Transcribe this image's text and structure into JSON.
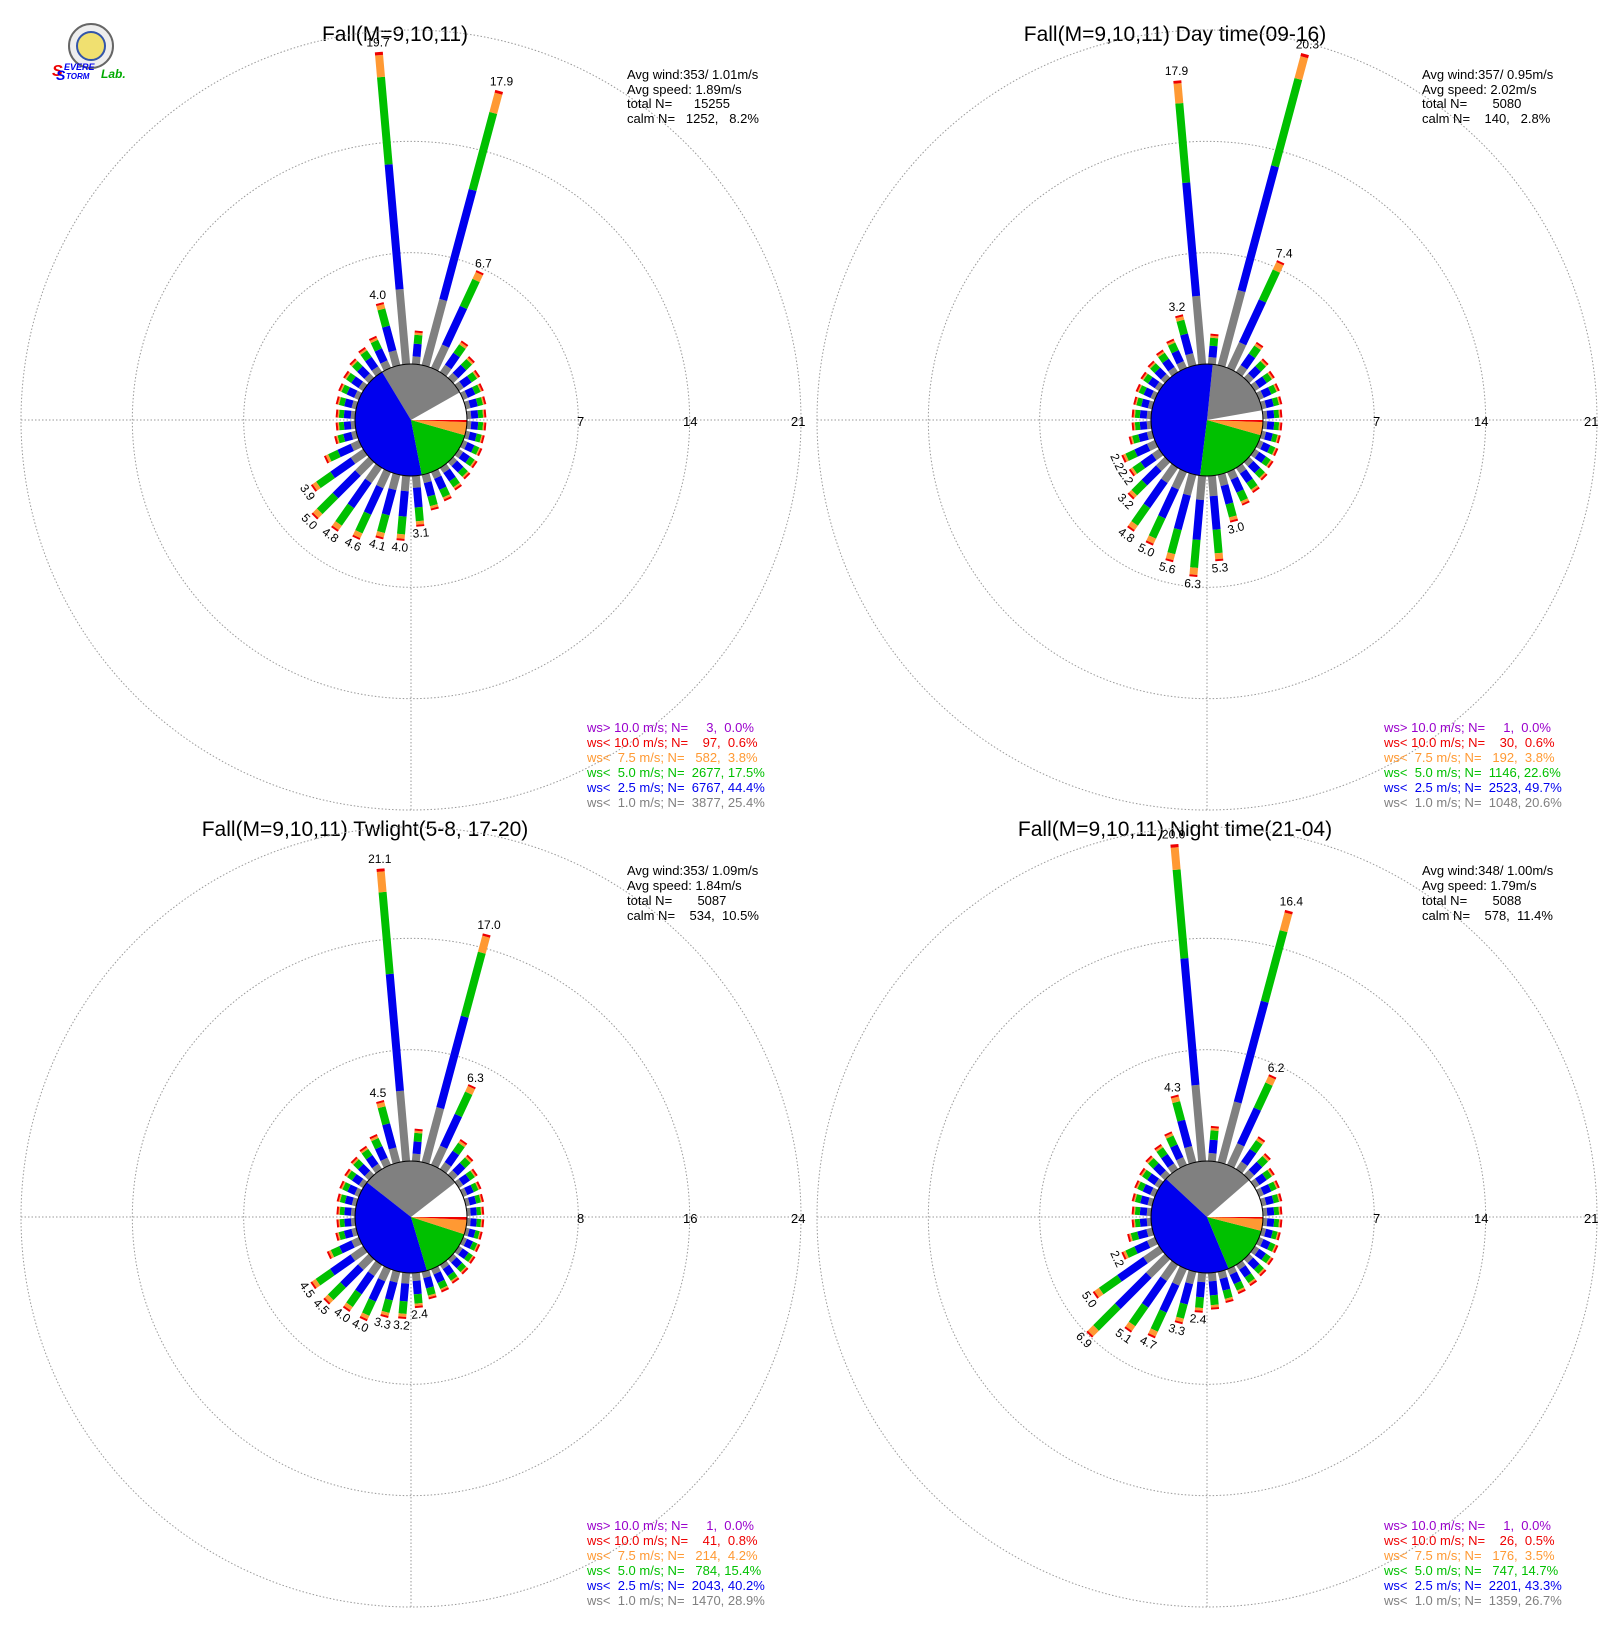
{
  "colors": {
    "gray": "#808080",
    "blue": "#0000ee",
    "green": "#00c000",
    "orange": "#ff9933",
    "red": "#ee0000",
    "purple": "#9900cc",
    "grid": "#999999"
  },
  "logo": {
    "line1_big": "S",
    "line1": "EVERE",
    "line2_big": "S",
    "line2": "TORM",
    "suffix": "Lab."
  },
  "chart_data": [
    {
      "type": "windrose",
      "title": "Fall(M=9,10,11)",
      "ring_labels": [
        "7",
        "14",
        "21"
      ],
      "rmax": 21,
      "stats": {
        "avg_wind": "Avg wind:353/ 1.01m/s",
        "avg_speed": "Avg speed: 1.89m/s",
        "total": "total N=      15255",
        "calm": "calm N=   1252,   8.2%"
      },
      "legend": [
        {
          "text": "ws> 10.0 m/s; N=     3,  0.0%",
          "color": "#9900cc"
        },
        {
          "text": "ws< 10.0 m/s; N=    97,  0.6%",
          "color": "#ee0000"
        },
        {
          "text": "ws<  7.5 m/s; N=   582,  3.8%",
          "color": "#ff9933"
        },
        {
          "text": "ws<  5.0 m/s; N=  2677, 17.5%",
          "color": "#00c000"
        },
        {
          "text": "ws<  2.5 m/s; N=  6767, 44.4%",
          "color": "#0000ee"
        },
        {
          "text": "ws<  1.0 m/s; N=  3877, 25.4%",
          "color": "#808080"
        }
      ],
      "pie_fractions": [
        0.082,
        0.254,
        0.444,
        0.175,
        0.038,
        0.006
      ],
      "bars": [
        {
          "dir": 355,
          "total": 19.7,
          "label": "19.7"
        },
        {
          "dir": 15,
          "total": 17.9,
          "label": "17.9"
        },
        {
          "dir": 25,
          "total": 6.7,
          "label": "6.7"
        },
        {
          "dir": 345,
          "total": 4.0,
          "label": "4.0"
        },
        {
          "dir": 35,
          "total": 2.3
        },
        {
          "dir": 335,
          "total": 2.1
        },
        {
          "dir": 5,
          "total": 2.0
        },
        {
          "dir": 45,
          "total": 1.8
        },
        {
          "dir": 325,
          "total": 1.8
        },
        {
          "dir": 315,
          "total": 1.6
        },
        {
          "dir": 305,
          "total": 1.4
        },
        {
          "dir": 295,
          "total": 1.3
        },
        {
          "dir": 285,
          "total": 1.2
        },
        {
          "dir": 275,
          "total": 1.1
        },
        {
          "dir": 265,
          "total": 1.1
        },
        {
          "dir": 255,
          "total": 1.3
        },
        {
          "dir": 245,
          "total": 2.3
        },
        {
          "dir": 235,
          "total": 3.9,
          "label": "3.9"
        },
        {
          "dir": 225,
          "total": 5.0,
          "label": "5.0"
        },
        {
          "dir": 215,
          "total": 4.8,
          "label": "4.8"
        },
        {
          "dir": 205,
          "total": 4.6,
          "label": "4.6"
        },
        {
          "dir": 195,
          "total": 4.1,
          "label": "4.1"
        },
        {
          "dir": 185,
          "total": 4.0,
          "label": "4.0"
        },
        {
          "dir": 175,
          "total": 3.1,
          "label": "3.1"
        },
        {
          "dir": 165,
          "total": 2.2
        },
        {
          "dir": 155,
          "total": 1.9
        },
        {
          "dir": 145,
          "total": 1.6
        },
        {
          "dir": 135,
          "total": 1.4
        },
        {
          "dir": 125,
          "total": 1.3
        },
        {
          "dir": 115,
          "total": 1.2
        },
        {
          "dir": 105,
          "total": 1.1
        },
        {
          "dir": 95,
          "total": 1.1
        },
        {
          "dir": 85,
          "total": 1.1
        },
        {
          "dir": 75,
          "total": 1.2
        },
        {
          "dir": 65,
          "total": 1.3
        },
        {
          "dir": 55,
          "total": 1.5
        }
      ]
    },
    {
      "type": "windrose",
      "title": "Fall(M=9,10,11) Day time(09-16)",
      "ring_labels": [
        "7",
        "14",
        "21"
      ],
      "rmax": 21,
      "stats": {
        "avg_wind": "Avg wind:357/ 0.95m/s",
        "avg_speed": "Avg speed: 2.02m/s",
        "total": "total N=       5080",
        "calm": "calm N=    140,   2.8%"
      },
      "legend": [
        {
          "text": "ws> 10.0 m/s; N=     1,  0.0%",
          "color": "#9900cc"
        },
        {
          "text": "ws< 10.0 m/s; N=    30,  0.6%",
          "color": "#ee0000"
        },
        {
          "text": "ws<  7.5 m/s; N=   192,  3.8%",
          "color": "#ff9933"
        },
        {
          "text": "ws<  5.0 m/s; N=  1146, 22.6%",
          "color": "#00c000"
        },
        {
          "text": "ws<  2.5 m/s; N=  2523, 49.7%",
          "color": "#0000ee"
        },
        {
          "text": "ws<  1.0 m/s; N=  1048, 20.6%",
          "color": "#808080"
        }
      ],
      "pie_fractions": [
        0.028,
        0.206,
        0.497,
        0.226,
        0.038,
        0.006
      ],
      "bars": [
        {
          "dir": 355,
          "total": 17.9,
          "label": "17.9"
        },
        {
          "dir": 15,
          "total": 20.3,
          "label": "20.3"
        },
        {
          "dir": 25,
          "total": 7.4,
          "label": "7.4"
        },
        {
          "dir": 345,
          "total": 3.2,
          "label": "3.2"
        },
        {
          "dir": 35,
          "total": 2.2
        },
        {
          "dir": 335,
          "total": 1.9
        },
        {
          "dir": 5,
          "total": 1.8
        },
        {
          "dir": 45,
          "total": 1.6
        },
        {
          "dir": 325,
          "total": 1.6
        },
        {
          "dir": 315,
          "total": 1.4
        },
        {
          "dir": 305,
          "total": 1.3
        },
        {
          "dir": 295,
          "total": 1.2
        },
        {
          "dir": 285,
          "total": 1.1
        },
        {
          "dir": 275,
          "total": 1.1
        },
        {
          "dir": 265,
          "total": 1.1
        },
        {
          "dir": 255,
          "total": 1.4
        },
        {
          "dir": 245,
          "total": 2.2,
          "label": "2.2"
        },
        {
          "dir": 235,
          "total": 2.2,
          "label": "2.2"
        },
        {
          "dir": 225,
          "total": 3.2,
          "label": "3.2"
        },
        {
          "dir": 215,
          "total": 4.8,
          "label": "4.8"
        },
        {
          "dir": 205,
          "total": 5.0,
          "label": "5.0"
        },
        {
          "dir": 195,
          "total": 5.6,
          "label": "5.6"
        },
        {
          "dir": 185,
          "total": 6.3,
          "label": "6.3"
        },
        {
          "dir": 175,
          "total": 5.3,
          "label": "5.3"
        },
        {
          "dir": 165,
          "total": 3.0,
          "label": "3.0"
        },
        {
          "dir": 155,
          "total": 2.2
        },
        {
          "dir": 145,
          "total": 1.8
        },
        {
          "dir": 135,
          "total": 1.5
        },
        {
          "dir": 125,
          "total": 1.3
        },
        {
          "dir": 115,
          "total": 1.2
        },
        {
          "dir": 105,
          "total": 1.1
        },
        {
          "dir": 95,
          "total": 1.1
        },
        {
          "dir": 85,
          "total": 1.1
        },
        {
          "dir": 75,
          "total": 1.2
        },
        {
          "dir": 65,
          "total": 1.3
        },
        {
          "dir": 55,
          "total": 1.4
        }
      ]
    },
    {
      "type": "windrose",
      "title": "Fall(M=9,10,11) Twlight(5-8, 17-20)",
      "ring_labels": [
        "8",
        "16",
        "24"
      ],
      "rmax": 24,
      "stats": {
        "avg_wind": "Avg wind:353/ 1.09m/s",
        "avg_speed": "Avg speed: 1.84m/s",
        "total": "total N=       5087",
        "calm": "calm N=    534,  10.5%"
      },
      "legend": [
        {
          "text": "ws> 10.0 m/s; N=     1,  0.0%",
          "color": "#9900cc"
        },
        {
          "text": "ws< 10.0 m/s; N=    41,  0.8%",
          "color": "#ee0000"
        },
        {
          "text": "ws<  7.5 m/s; N=   214,  4.2%",
          "color": "#ff9933"
        },
        {
          "text": "ws<  5.0 m/s; N=   784, 15.4%",
          "color": "#00c000"
        },
        {
          "text": "ws<  2.5 m/s; N=  2043, 40.2%",
          "color": "#0000ee"
        },
        {
          "text": "ws<  1.0 m/s; N=  1470, 28.9%",
          "color": "#808080"
        }
      ],
      "pie_fractions": [
        0.105,
        0.289,
        0.402,
        0.154,
        0.042,
        0.008
      ],
      "bars": [
        {
          "dir": 355,
          "total": 21.1,
          "label": "21.1"
        },
        {
          "dir": 15,
          "total": 17.0,
          "label": "17.0"
        },
        {
          "dir": 25,
          "total": 6.3,
          "label": "6.3"
        },
        {
          "dir": 345,
          "total": 4.5,
          "label": "4.5"
        },
        {
          "dir": 35,
          "total": 2.5
        },
        {
          "dir": 335,
          "total": 2.3
        },
        {
          "dir": 5,
          "total": 2.2
        },
        {
          "dir": 45,
          "total": 1.9
        },
        {
          "dir": 325,
          "total": 1.9
        },
        {
          "dir": 315,
          "total": 1.7
        },
        {
          "dir": 305,
          "total": 1.5
        },
        {
          "dir": 295,
          "total": 1.4
        },
        {
          "dir": 285,
          "total": 1.3
        },
        {
          "dir": 275,
          "total": 1.2
        },
        {
          "dir": 265,
          "total": 1.2
        },
        {
          "dir": 255,
          "total": 1.4
        },
        {
          "dir": 245,
          "total": 2.4
        },
        {
          "dir": 235,
          "total": 4.5,
          "label": "4.5"
        },
        {
          "dir": 225,
          "total": 4.5,
          "label": "4.5"
        },
        {
          "dir": 215,
          "total": 4.0,
          "label": "4.0"
        },
        {
          "dir": 205,
          "total": 4.0,
          "label": "4.0"
        },
        {
          "dir": 195,
          "total": 3.3,
          "label": "3.3"
        },
        {
          "dir": 185,
          "total": 3.2,
          "label": "3.2"
        },
        {
          "dir": 175,
          "total": 2.4,
          "label": "2.4"
        },
        {
          "dir": 165,
          "total": 1.9
        },
        {
          "dir": 155,
          "total": 1.7
        },
        {
          "dir": 145,
          "total": 1.5
        },
        {
          "dir": 135,
          "total": 1.4
        },
        {
          "dir": 125,
          "total": 1.3
        },
        {
          "dir": 115,
          "total": 1.2
        },
        {
          "dir": 105,
          "total": 1.1
        },
        {
          "dir": 95,
          "total": 1.1
        },
        {
          "dir": 85,
          "total": 1.1
        },
        {
          "dir": 75,
          "total": 1.2
        },
        {
          "dir": 65,
          "total": 1.3
        },
        {
          "dir": 55,
          "total": 1.5
        }
      ]
    },
    {
      "type": "windrose",
      "title": "Fall(M=9,10,11) Night time(21-04)",
      "ring_labels": [
        "7",
        "14",
        "21"
      ],
      "rmax": 21,
      "stats": {
        "avg_wind": "Avg wind:348/ 1.00m/s",
        "avg_speed": "Avg speed: 1.79m/s",
        "total": "total N=       5088",
        "calm": "calm N=    578,  11.4%"
      },
      "legend": [
        {
          "text": "ws> 10.0 m/s; N=     1,  0.0%",
          "color": "#9900cc"
        },
        {
          "text": "ws< 10.0 m/s; N=    26,  0.5%",
          "color": "#ee0000"
        },
        {
          "text": "ws<  7.5 m/s; N=   176,  3.5%",
          "color": "#ff9933"
        },
        {
          "text": "ws<  5.0 m/s; N=   747, 14.7%",
          "color": "#00c000"
        },
        {
          "text": "ws<  2.5 m/s; N=  2201, 43.3%",
          "color": "#0000ee"
        },
        {
          "text": "ws<  1.0 m/s; N=  1359, 26.7%",
          "color": "#808080"
        }
      ],
      "pie_fractions": [
        0.114,
        0.267,
        0.433,
        0.147,
        0.035,
        0.005
      ],
      "bars": [
        {
          "dir": 355,
          "total": 20.0,
          "label": "20.0"
        },
        {
          "dir": 15,
          "total": 16.4,
          "label": "16.4"
        },
        {
          "dir": 25,
          "total": 6.2,
          "label": "6.2"
        },
        {
          "dir": 345,
          "total": 4.3,
          "label": "4.3"
        },
        {
          "dir": 35,
          "total": 2.4
        },
        {
          "dir": 335,
          "total": 2.2
        },
        {
          "dir": 5,
          "total": 2.1
        },
        {
          "dir": 45,
          "total": 1.8
        },
        {
          "dir": 325,
          "total": 1.8
        },
        {
          "dir": 315,
          "total": 1.6
        },
        {
          "dir": 305,
          "total": 1.4
        },
        {
          "dir": 295,
          "total": 1.3
        },
        {
          "dir": 285,
          "total": 1.2
        },
        {
          "dir": 275,
          "total": 1.1
        },
        {
          "dir": 265,
          "total": 1.1
        },
        {
          "dir": 255,
          "total": 1.5
        },
        {
          "dir": 245,
          "total": 2.2,
          "label": "2.2"
        },
        {
          "dir": 235,
          "total": 5.0,
          "label": "5.0"
        },
        {
          "dir": 225,
          "total": 6.9,
          "label": "6.9"
        },
        {
          "dir": 215,
          "total": 5.1,
          "label": "5.1"
        },
        {
          "dir": 205,
          "total": 4.7,
          "label": "4.7"
        },
        {
          "dir": 195,
          "total": 3.3,
          "label": "3.3"
        },
        {
          "dir": 185,
          "total": 2.4,
          "label": "2.4"
        },
        {
          "dir": 175,
          "total": 2.2
        },
        {
          "dir": 165,
          "total": 1.9
        },
        {
          "dir": 155,
          "total": 1.6
        },
        {
          "dir": 145,
          "total": 1.5
        },
        {
          "dir": 135,
          "total": 1.4
        },
        {
          "dir": 125,
          "total": 1.3
        },
        {
          "dir": 115,
          "total": 1.2
        },
        {
          "dir": 105,
          "total": 1.1
        },
        {
          "dir": 95,
          "total": 1.1
        },
        {
          "dir": 85,
          "total": 1.1
        },
        {
          "dir": 75,
          "total": 1.2
        },
        {
          "dir": 65,
          "total": 1.3
        },
        {
          "dir": 55,
          "total": 1.4
        }
      ]
    }
  ]
}
